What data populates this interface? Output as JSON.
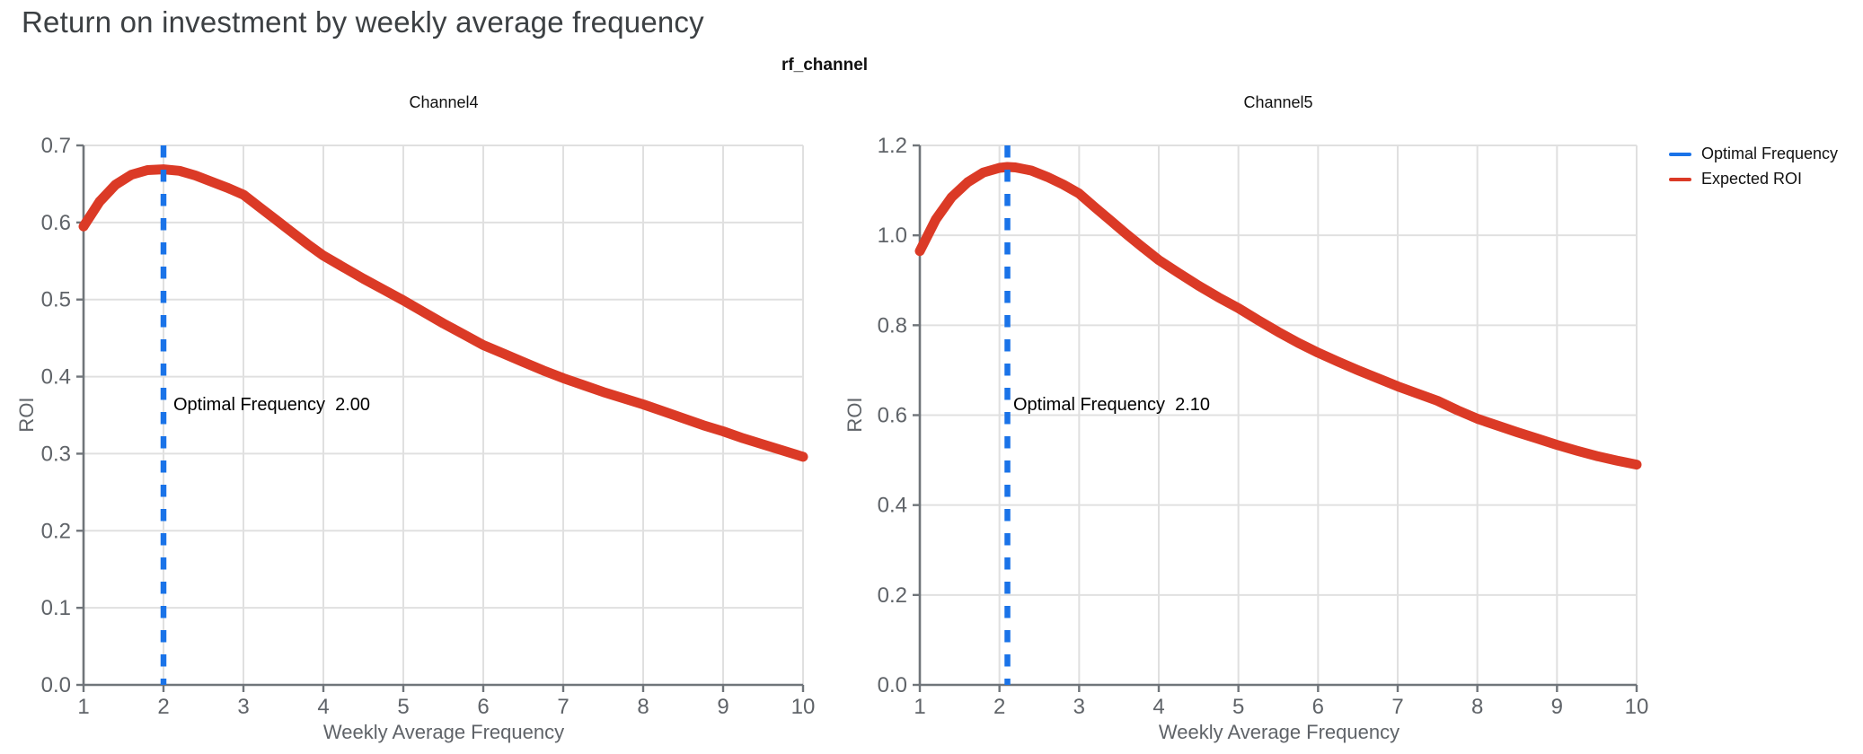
{
  "page": {
    "title": "Return on investment by weekly average frequency",
    "suptitle": "rf_channel"
  },
  "colors": {
    "optimal_line": "#1a73e8",
    "roi_curve": "#db3a26",
    "grid": "#e0e0e0",
    "spine": "#70757a",
    "tick_label": "#5f6368",
    "title_text": "#3c4043",
    "black_text": "#111111"
  },
  "legend": {
    "position": "top-right",
    "items": [
      {
        "label": "Optimal Frequency",
        "color": "#1a73e8"
      },
      {
        "label": "Expected ROI",
        "color": "#db3a26"
      }
    ]
  },
  "chart_data": [
    {
      "type": "line",
      "facet": "Channel4",
      "xlabel": "Weekly Average Frequency",
      "ylabel": "ROI",
      "xlim": [
        1,
        10
      ],
      "ylim": [
        0,
        0.7
      ],
      "x_ticks": [
        1,
        2,
        3,
        4,
        5,
        6,
        7,
        8,
        9,
        10
      ],
      "y_tick_labels": [
        "0.0",
        "0.1",
        "0.2",
        "0.3",
        "0.4",
        "0.5",
        "0.6",
        "0.7"
      ],
      "grid": true,
      "optimal_frequency": 2.0,
      "annotation": "Optimal Frequency  2.00",
      "series": [
        {
          "name": "Expected ROI",
          "x": [
            1.0,
            1.2,
            1.4,
            1.6,
            1.8,
            2.0,
            2.2,
            2.4,
            2.6,
            2.8,
            3.0,
            3.2,
            3.4,
            3.6,
            3.8,
            4.0,
            4.25,
            4.5,
            4.75,
            5.0,
            5.25,
            5.5,
            5.75,
            6.0,
            6.25,
            6.5,
            6.75,
            7.0,
            7.25,
            7.5,
            7.75,
            8.0,
            8.25,
            8.5,
            8.75,
            9.0,
            9.25,
            9.5,
            9.75,
            10.0
          ],
          "y": [
            0.595,
            0.627,
            0.649,
            0.662,
            0.668,
            0.669,
            0.667,
            0.661,
            0.653,
            0.645,
            0.636,
            0.62,
            0.604,
            0.588,
            0.572,
            0.557,
            0.542,
            0.527,
            0.513,
            0.499,
            0.484,
            0.469,
            0.455,
            0.441,
            0.43,
            0.419,
            0.408,
            0.398,
            0.389,
            0.38,
            0.372,
            0.364,
            0.355,
            0.346,
            0.337,
            0.329,
            0.32,
            0.312,
            0.304,
            0.296
          ]
        }
      ]
    },
    {
      "type": "line",
      "facet": "Channel5",
      "xlabel": "Weekly Average Frequency",
      "ylabel": "ROI",
      "xlim": [
        1,
        10
      ],
      "ylim": [
        0,
        1.2
      ],
      "x_ticks": [
        1,
        2,
        3,
        4,
        5,
        6,
        7,
        8,
        9,
        10
      ],
      "y_tick_labels": [
        "0.0",
        "0.2",
        "0.4",
        "0.6",
        "0.8",
        "1.0",
        "1.2"
      ],
      "grid": true,
      "optimal_frequency": 2.1,
      "annotation": "Optimal Frequency  2.10",
      "series": [
        {
          "name": "Expected ROI",
          "x": [
            1.0,
            1.2,
            1.4,
            1.6,
            1.8,
            2.0,
            2.1,
            2.2,
            2.4,
            2.6,
            2.8,
            3.0,
            3.2,
            3.4,
            3.6,
            3.8,
            4.0,
            4.25,
            4.5,
            4.75,
            5.0,
            5.25,
            5.5,
            5.75,
            6.0,
            6.25,
            6.5,
            6.75,
            7.0,
            7.25,
            7.5,
            7.75,
            8.0,
            8.25,
            8.5,
            8.75,
            9.0,
            9.25,
            9.5,
            9.75,
            10.0
          ],
          "y": [
            0.965,
            1.035,
            1.085,
            1.118,
            1.14,
            1.15,
            1.152,
            1.151,
            1.144,
            1.13,
            1.113,
            1.093,
            1.062,
            1.032,
            1.002,
            0.973,
            0.945,
            0.916,
            0.888,
            0.862,
            0.838,
            0.811,
            0.785,
            0.761,
            0.739,
            0.719,
            0.7,
            0.682,
            0.664,
            0.648,
            0.632,
            0.611,
            0.592,
            0.577,
            0.562,
            0.548,
            0.534,
            0.521,
            0.509,
            0.499,
            0.49
          ]
        }
      ]
    }
  ]
}
